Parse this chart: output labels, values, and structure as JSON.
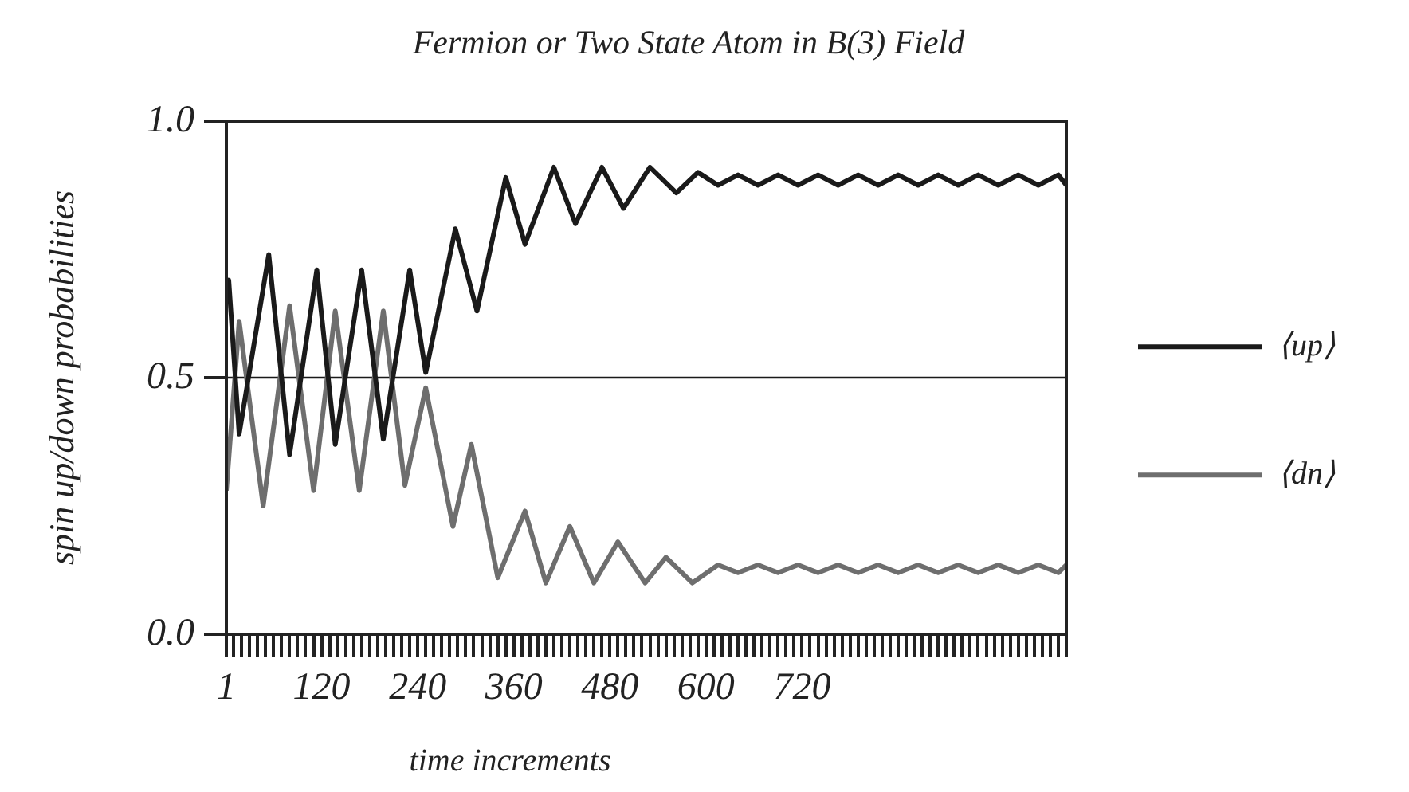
{
  "chart_data": {
    "type": "line",
    "title": "Fermion or Two State Atom in B(3) Field",
    "xlabel": "time increments",
    "ylabel": "spin up/down probabilities",
    "series": [
      {
        "name": "⟨up⟩",
        "color": "#1a1a1a",
        "x": [
          1,
          4,
          17,
          54,
          80,
          114,
          137,
          170,
          197,
          230,
          250,
          287,
          314,
          350,
          374,
          410,
          437,
          470,
          497,
          530,
          563,
          590,
          615,
          640,
          665,
          690,
          715,
          740,
          765,
          790,
          815,
          840,
          865,
          890,
          915,
          940,
          965,
          990,
          1015,
          1040,
          1050
        ],
        "values": [
          0.66,
          0.69,
          0.39,
          0.74,
          0.35,
          0.71,
          0.37,
          0.71,
          0.38,
          0.71,
          0.51,
          0.79,
          0.63,
          0.89,
          0.76,
          0.91,
          0.8,
          0.91,
          0.83,
          0.91,
          0.86,
          0.9,
          0.875,
          0.895,
          0.875,
          0.895,
          0.875,
          0.895,
          0.875,
          0.895,
          0.875,
          0.895,
          0.875,
          0.895,
          0.875,
          0.895,
          0.875,
          0.895,
          0.875,
          0.895,
          0.875
        ]
      },
      {
        "name": "⟨dn⟩",
        "color": "#6e6e6e",
        "x": [
          1,
          17,
          47,
          80,
          110,
          137,
          167,
          197,
          224,
          250,
          284,
          307,
          340,
          374,
          400,
          430,
          460,
          490,
          524,
          550,
          583,
          615,
          640,
          665,
          690,
          715,
          740,
          765,
          790,
          815,
          840,
          865,
          890,
          915,
          940,
          965,
          990,
          1015,
          1040,
          1050
        ],
        "values": [
          0.28,
          0.61,
          0.25,
          0.64,
          0.28,
          0.63,
          0.28,
          0.63,
          0.29,
          0.48,
          0.21,
          0.37,
          0.11,
          0.24,
          0.1,
          0.21,
          0.1,
          0.18,
          0.1,
          0.15,
          0.1,
          0.135,
          0.12,
          0.135,
          0.12,
          0.135,
          0.12,
          0.135,
          0.12,
          0.135,
          0.12,
          0.135,
          0.12,
          0.135,
          0.12,
          0.135,
          0.12,
          0.135,
          0.12,
          0.135
        ]
      }
    ],
    "xlim": [
      1,
      1050
    ],
    "xticks": [
      1,
      {
        "value": 10,
        "label": null
      },
      {
        "value": 20,
        "label": null
      },
      {
        "value": 30,
        "label": null
      },
      {
        "value": 40,
        "label": null
      },
      {
        "value": 50,
        "label": null
      },
      {
        "value": 60,
        "label": null
      },
      {
        "value": 70,
        "label": null
      },
      {
        "value": 80,
        "label": null
      },
      {
        "value": 90,
        "label": null
      },
      {
        "value": 100,
        "label": null
      },
      {
        "value": 110,
        "label": null
      },
      120,
      {
        "value": 130,
        "label": null
      },
      {
        "value": 140,
        "label": null
      },
      {
        "value": 150,
        "label": null
      },
      {
        "value": 160,
        "label": null
      },
      {
        "value": 170,
        "label": null
      },
      {
        "value": 180,
        "label": null
      },
      {
        "value": 190,
        "label": null
      },
      {
        "value": 200,
        "label": null
      },
      {
        "value": 210,
        "label": null
      },
      {
        "value": 220,
        "label": null
      },
      {
        "value": 230,
        "label": null
      },
      240,
      {
        "value": 250,
        "label": null
      },
      {
        "value": 260,
        "label": null
      },
      {
        "value": 270,
        "label": null
      },
      {
        "value": 280,
        "label": null
      },
      {
        "value": 290,
        "label": null
      },
      {
        "value": 300,
        "label": null
      },
      {
        "value": 310,
        "label": null
      },
      {
        "value": 320,
        "label": null
      },
      {
        "value": 330,
        "label": null
      },
      {
        "value": 340,
        "label": null
      },
      {
        "value": 350,
        "label": null
      },
      360,
      {
        "value": 370,
        "label": null
      },
      {
        "value": 380,
        "label": null
      },
      {
        "value": 390,
        "label": null
      },
      {
        "value": 400,
        "label": null
      },
      {
        "value": 410,
        "label": null
      },
      {
        "value": 420,
        "label": null
      },
      {
        "value": 430,
        "label": null
      },
      {
        "value": 440,
        "label": null
      },
      {
        "value": 450,
        "label": null
      },
      {
        "value": 460,
        "label": null
      },
      {
        "value": 470,
        "label": null
      },
      480,
      {
        "value": 490,
        "label": null
      },
      {
        "value": 500,
        "label": null
      },
      {
        "value": 510,
        "label": null
      },
      {
        "value": 520,
        "label": null
      },
      {
        "value": 530,
        "label": null
      },
      {
        "value": 540,
        "label": null
      },
      {
        "value": 550,
        "label": null
      },
      {
        "value": 560,
        "label": null
      },
      {
        "value": 570,
        "label": null
      },
      {
        "value": 580,
        "label": null
      },
      {
        "value": 590,
        "label": null
      },
      600,
      {
        "value": 610,
        "label": null
      },
      {
        "value": 620,
        "label": null
      },
      {
        "value": 630,
        "label": null
      },
      {
        "value": 640,
        "label": null
      },
      {
        "value": 650,
        "label": null
      },
      {
        "value": 660,
        "label": null
      },
      {
        "value": 670,
        "label": null
      },
      {
        "value": 680,
        "label": null
      },
      {
        "value": 690,
        "label": null
      },
      {
        "value": 700,
        "label": null
      },
      {
        "value": 710,
        "label": null
      },
      720,
      {
        "value": 730,
        "label": null
      },
      {
        "value": 740,
        "label": null
      },
      {
        "value": 750,
        "label": null
      },
      {
        "value": 760,
        "label": null
      },
      {
        "value": 770,
        "label": null
      },
      {
        "value": 780,
        "label": null
      },
      {
        "value": 790,
        "label": null
      },
      {
        "value": 800,
        "label": null
      },
      {
        "value": 810,
        "label": null
      },
      {
        "value": 820,
        "label": null
      },
      {
        "value": 830,
        "label": null
      },
      {
        "value": 840,
        "label": null
      },
      {
        "value": 850,
        "label": null
      },
      {
        "value": 860,
        "label": null
      },
      {
        "value": 870,
        "label": null
      },
      {
        "value": 880,
        "label": null
      },
      {
        "value": 890,
        "label": null
      },
      {
        "value": 900,
        "label": null
      },
      {
        "value": 910,
        "label": null
      },
      {
        "value": 920,
        "label": null
      },
      {
        "value": 930,
        "label": null
      },
      {
        "value": 940,
        "label": null
      },
      {
        "value": 950,
        "label": null
      },
      {
        "value": 960,
        "label": null
      },
      {
        "value": 970,
        "label": null
      },
      {
        "value": 980,
        "label": null
      },
      {
        "value": 990,
        "label": null
      },
      {
        "value": 1000,
        "label": null
      },
      {
        "value": 1010,
        "label": null
      },
      {
        "value": 1020,
        "label": null
      },
      {
        "value": 1030,
        "label": null
      },
      {
        "value": 1040,
        "label": null
      },
      {
        "value": 1050,
        "label": null
      }
    ],
    "ylim": [
      0,
      1
    ],
    "yticks": [
      {
        "value": 0,
        "label": "0.0"
      },
      {
        "value": 0.5,
        "label": "0.5"
      },
      {
        "value": 1,
        "label": "1.0"
      }
    ],
    "ref_lines": [
      {
        "axis": "y",
        "value": 0.5,
        "color": "#1a1a1a"
      }
    ],
    "grid": false,
    "legend": "right",
    "marker": "none",
    "line_style": "solid"
  }
}
